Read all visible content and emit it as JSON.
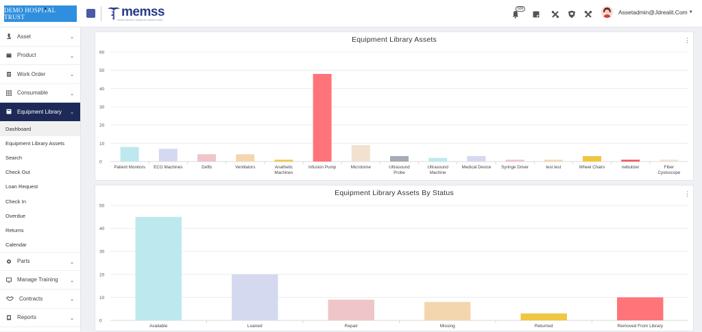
{
  "header": {
    "brand": "DEMO HOSPITAL TRUST",
    "logo_text": "memss",
    "logo_tagline": "medical equipment management software solution",
    "notification_count": "606",
    "user_email": "Assetadmin@Jdrealit.Com"
  },
  "sidebar": {
    "items": [
      {
        "label": "Asset",
        "icon": "microscope-icon"
      },
      {
        "label": "Product",
        "icon": "box-icon"
      },
      {
        "label": "Work Order",
        "icon": "clipboard-icon"
      },
      {
        "label": "Consumable",
        "icon": "grid-icon"
      },
      {
        "label": "Equipment Library",
        "icon": "book-icon"
      }
    ],
    "sub_items": [
      "Dashboard",
      "Equipment Library Assets",
      "Search",
      "Check Out",
      "Loan Request",
      "Check In",
      "Overdue",
      "Returns",
      "Calendar"
    ],
    "bottom_items": [
      {
        "label": "Parts",
        "icon": "gear-icon"
      },
      {
        "label": "Manage Training",
        "icon": "monitor-icon"
      },
      {
        "label": "Contracts",
        "icon": "handshake-icon"
      },
      {
        "label": "Reports",
        "icon": "report-icon"
      }
    ]
  },
  "chart_data": [
    {
      "type": "bar",
      "title": "Equipment Library Assets",
      "categories": [
        "Patient Monitors",
        "ECG Machines",
        "Defib",
        "Ventilators",
        "Anathetic Machines",
        "Infusion Pump",
        "Microtome",
        "Ultrasound Probe",
        "Ultrasound Machine",
        "Medical Device",
        "Syringe Driver",
        "test test",
        "Wheel Chairs",
        "nebulizer",
        "Fiber Cystoscope"
      ],
      "category_lines": [
        [
          "Patient Monitors"
        ],
        [
          "ECG Machines"
        ],
        [
          "Defib"
        ],
        [
          "Ventilators"
        ],
        [
          "Anathetic",
          "Machines"
        ],
        [
          "Infusion Pump"
        ],
        [
          "Microtome"
        ],
        [
          "Ultrasound",
          "Probe"
        ],
        [
          "Ultrasound",
          "Machine"
        ],
        [
          "Medical Device"
        ],
        [
          "Syringe Driver"
        ],
        [
          "test test"
        ],
        [
          "Wheel Chairs"
        ],
        [
          "nebulizer"
        ],
        [
          "Fiber",
          "Cystoscope"
        ]
      ],
      "values": [
        8,
        7,
        4,
        4,
        1,
        48,
        9,
        3,
        2,
        3,
        1,
        1,
        3,
        1,
        1
      ],
      "colors": [
        "#bde9ee",
        "#d5d9f0",
        "#efc5c9",
        "#f4d6ae",
        "#f1c645",
        "#ff7479",
        "#f2e1cf",
        "#a6acb5",
        "#bde9ee",
        "#d5d9f0",
        "#efc5c9",
        "#f4d6ae",
        "#f1c645",
        "#f3575a",
        "#f2e1cf"
      ],
      "ylim": [
        0,
        60
      ],
      "yticks": [
        0,
        10,
        20,
        30,
        40,
        50,
        60
      ],
      "grid": true
    },
    {
      "type": "bar",
      "title": "Equipment Library Assets By Status",
      "categories": [
        "Available",
        "Loaned",
        "Repair",
        "Missing",
        "Returned",
        "Removed From Library"
      ],
      "values": [
        45,
        20,
        9,
        8,
        3,
        10
      ],
      "colors": [
        "#bde9ee",
        "#d5d9f0",
        "#efc5c9",
        "#f4d6ae",
        "#f1c645",
        "#ff7479"
      ],
      "ylim": [
        0,
        50
      ],
      "yticks": [
        0,
        10,
        20,
        30,
        40,
        50
      ],
      "grid": true
    }
  ]
}
